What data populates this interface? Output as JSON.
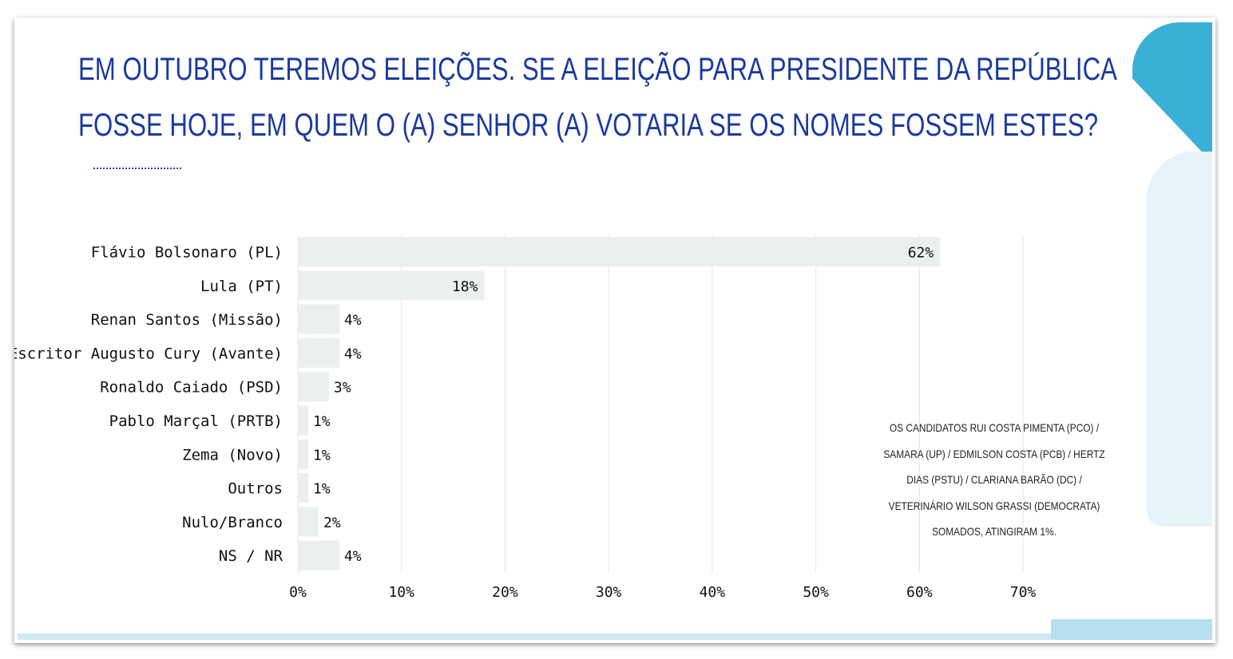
{
  "title_lines": [
    "EM OUTUBRO TEREMOS ELEIÇÕES. SE A ELEIÇÃO PARA PRESIDENTE DA REPÚBLICA",
    "FOSSE HOJE, EM QUEM O (A) SENHOR (A) VOTARIA SE OS NOMES FOSSEM ESTES?"
  ],
  "note": "OS CANDIDATOS RUI COSTA PIMENTA (PCO) / SAMARA (UP) / EDMILSON COSTA (PCB) / HERTZ DIAS (PSTU) / CLARIANA BARÃO (DC) / VETERINÁRIO WILSON GRASSI (DEMOCRATA) SOMADOS, ATINGIRAM 1%.",
  "colors": {
    "bar": "#eceff0",
    "title": "#1a3a9c",
    "accent": "#3bb0d6"
  },
  "chart_data": {
    "type": "bar",
    "orientation": "horizontal",
    "categories": [
      "Flávio Bolsonaro (PL)",
      "Lula (PT)",
      "Renan Santos (Missão)",
      "Escritor Augusto Cury (Avante)",
      "Ronaldo Caiado (PSD)",
      "Pablo Marçal (PRTB)",
      "Zema (Novo)",
      "Outros",
      "Nulo/Branco",
      "NS / NR"
    ],
    "values": [
      62,
      18,
      4,
      4,
      3,
      1,
      1,
      1,
      2,
      4
    ],
    "data_labels": [
      "62%",
      "18%",
      "4%",
      "4%",
      "3%",
      "1%",
      "1%",
      "1%",
      "2%",
      "4%"
    ],
    "xlim": [
      0,
      70
    ],
    "x_ticks": [
      "0%",
      "10%",
      "20%",
      "30%",
      "40%",
      "50%",
      "60%",
      "70%"
    ],
    "grid": true,
    "legend": "none"
  }
}
